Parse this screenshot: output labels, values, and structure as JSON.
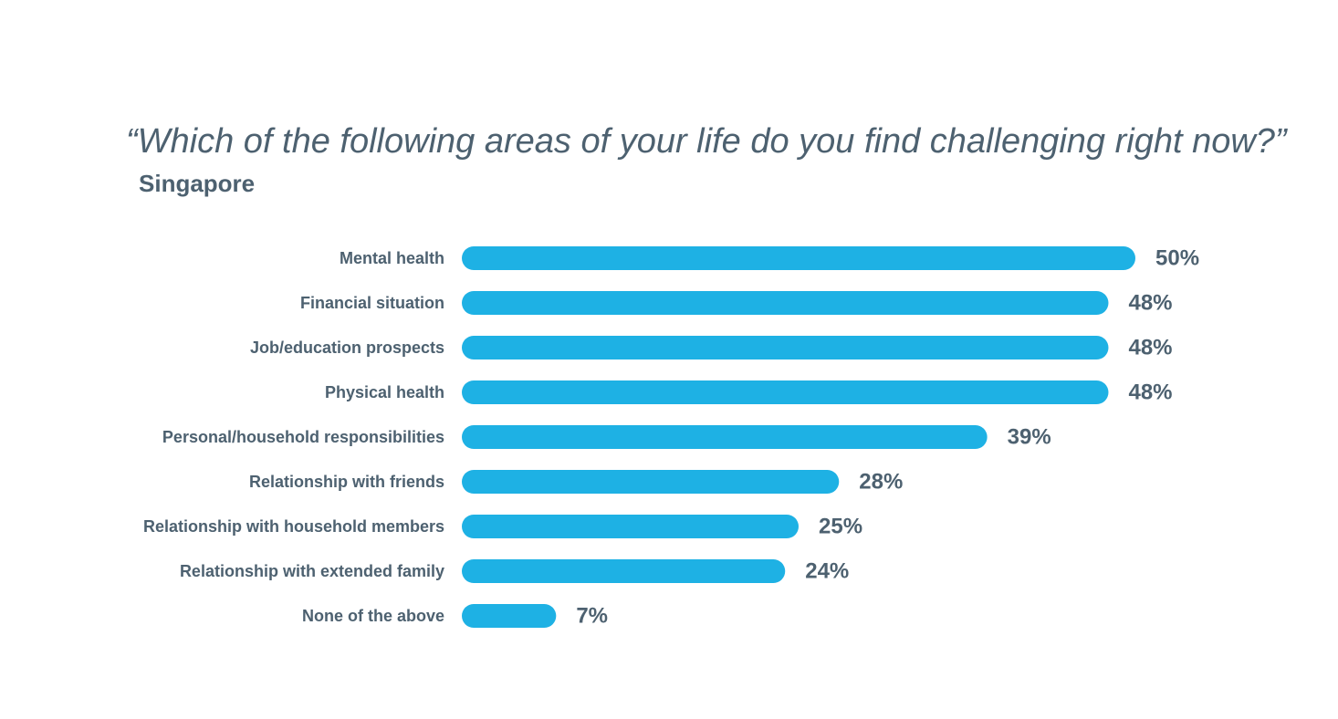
{
  "chart_data": {
    "type": "bar",
    "orientation": "horizontal",
    "title": "“Which of the following areas of your life do you find challenging right now?”",
    "subtitle": "Singapore",
    "categories": [
      "Mental health",
      "Financial situation",
      "Job/education prospects",
      "Physical health",
      "Personal/household responsibilities",
      "Relationship with friends",
      "Relationship with household members",
      "Relationship with extended family",
      "None of the above"
    ],
    "values": [
      50,
      48,
      48,
      48,
      39,
      28,
      25,
      24,
      7
    ],
    "value_suffix": "%",
    "xlim": [
      0,
      50
    ],
    "grid": false,
    "legend": "none",
    "colors": {
      "bar": "#1eb1e4",
      "text": "#4d6170"
    }
  }
}
